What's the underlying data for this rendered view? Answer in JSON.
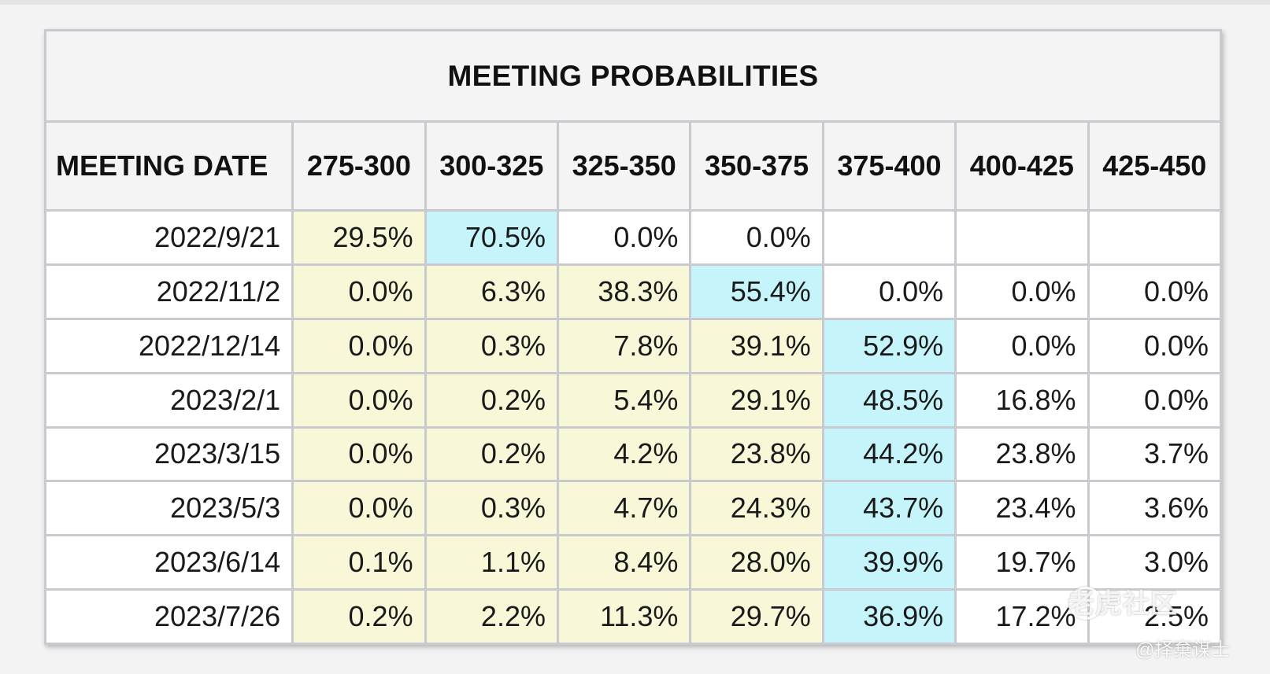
{
  "title": "MEETING PROBABILITIES",
  "header": [
    "MEETING DATE",
    "275-300",
    "300-325",
    "325-350",
    "350-375",
    "375-400",
    "400-425",
    "425-450"
  ],
  "rows": [
    {
      "date": "2022/9/21",
      "cells": [
        [
          "29.5%",
          "y"
        ],
        [
          "70.5%",
          "b"
        ],
        [
          "0.0%",
          "w"
        ],
        [
          "0.0%",
          "w"
        ],
        [
          "",
          "w"
        ],
        [
          "",
          "w"
        ],
        [
          "",
          "w"
        ]
      ]
    },
    {
      "date": "2022/11/2",
      "cells": [
        [
          "0.0%",
          "y"
        ],
        [
          "6.3%",
          "y"
        ],
        [
          "38.3%",
          "y"
        ],
        [
          "55.4%",
          "b"
        ],
        [
          "0.0%",
          "w"
        ],
        [
          "0.0%",
          "w"
        ],
        [
          "0.0%",
          "w"
        ]
      ]
    },
    {
      "date": "2022/12/14",
      "cells": [
        [
          "0.0%",
          "y"
        ],
        [
          "0.3%",
          "y"
        ],
        [
          "7.8%",
          "y"
        ],
        [
          "39.1%",
          "y"
        ],
        [
          "52.9%",
          "b"
        ],
        [
          "0.0%",
          "w"
        ],
        [
          "0.0%",
          "w"
        ]
      ]
    },
    {
      "date": "2023/2/1",
      "cells": [
        [
          "0.0%",
          "y"
        ],
        [
          "0.2%",
          "y"
        ],
        [
          "5.4%",
          "y"
        ],
        [
          "29.1%",
          "y"
        ],
        [
          "48.5%",
          "b"
        ],
        [
          "16.8%",
          "w"
        ],
        [
          "0.0%",
          "w"
        ]
      ]
    },
    {
      "date": "2023/3/15",
      "cells": [
        [
          "0.0%",
          "y"
        ],
        [
          "0.2%",
          "y"
        ],
        [
          "4.2%",
          "y"
        ],
        [
          "23.8%",
          "y"
        ],
        [
          "44.2%",
          "b"
        ],
        [
          "23.8%",
          "w"
        ],
        [
          "3.7%",
          "w"
        ]
      ]
    },
    {
      "date": "2023/5/3",
      "cells": [
        [
          "0.0%",
          "y"
        ],
        [
          "0.3%",
          "y"
        ],
        [
          "4.7%",
          "y"
        ],
        [
          "24.3%",
          "y"
        ],
        [
          "43.7%",
          "b"
        ],
        [
          "23.4%",
          "w"
        ],
        [
          "3.6%",
          "w"
        ]
      ]
    },
    {
      "date": "2023/6/14",
      "cells": [
        [
          "0.1%",
          "y"
        ],
        [
          "1.1%",
          "y"
        ],
        [
          "8.4%",
          "y"
        ],
        [
          "28.0%",
          "y"
        ],
        [
          "39.9%",
          "b"
        ],
        [
          "19.7%",
          "w"
        ],
        [
          "3.0%",
          "w"
        ]
      ]
    },
    {
      "date": "2023/7/26",
      "cells": [
        [
          "0.2%",
          "y"
        ],
        [
          "2.2%",
          "y"
        ],
        [
          "11.3%",
          "y"
        ],
        [
          "29.7%",
          "y"
        ],
        [
          "36.9%",
          "b"
        ],
        [
          "17.2%",
          "w"
        ],
        [
          "2.5%",
          "w"
        ]
      ]
    }
  ],
  "colors": {
    "yellow": "#f8f8d8",
    "blue": "#c5f4fb",
    "border": "#c9cad0"
  },
  "watermark": {
    "main": "老虎社区",
    "sub": "@择棄谋士"
  }
}
